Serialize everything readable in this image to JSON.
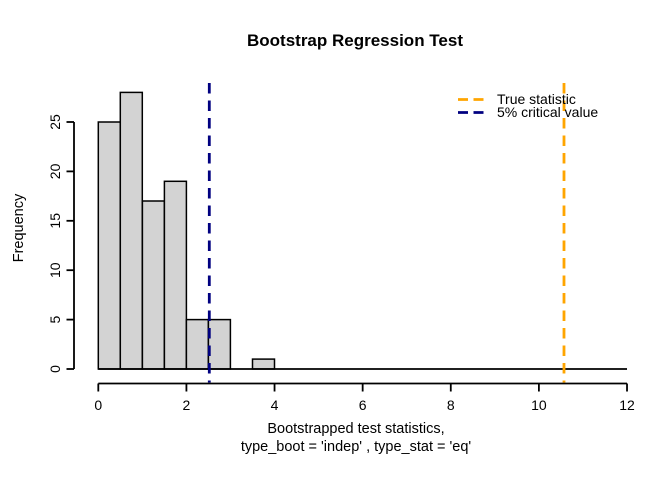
{
  "window": {
    "background": "#ffffff"
  },
  "chart_data": {
    "type": "bar",
    "subtype": "histogram",
    "title": "Bootstrap Regression Test",
    "xlabel_line1": "Bootstrapped test statistics,",
    "xlabel_line2": "type_boot = 'indep' , type_stat = 'eq'",
    "ylabel": "Frequency",
    "bin_edges": [
      0,
      0.5,
      1,
      1.5,
      2,
      2.5,
      3,
      3.5,
      4
    ],
    "counts": [
      25,
      28,
      17,
      19,
      5,
      5,
      0,
      1
    ],
    "total_samples": 100,
    "xlim": [
      0,
      12
    ],
    "ylim": [
      0,
      28
    ],
    "x_ticks": [
      0,
      2,
      4,
      6,
      8,
      10,
      12
    ],
    "y_ticks": [
      0,
      5,
      10,
      15,
      20,
      25
    ],
    "grid": false,
    "bar_fill": "#d3d3d3",
    "bar_stroke": "#000000",
    "axis_color": "#000000",
    "vlines": [
      {
        "id": "true-statistic",
        "label": "True statistic",
        "x": 10.57,
        "color": "#FFA500",
        "style": "dashed"
      },
      {
        "id": "critical-value",
        "label": "5% critical value",
        "x": 2.52,
        "color": "#000080",
        "style": "dashed"
      }
    ],
    "legend": {
      "position": "topright",
      "border": "none"
    }
  }
}
